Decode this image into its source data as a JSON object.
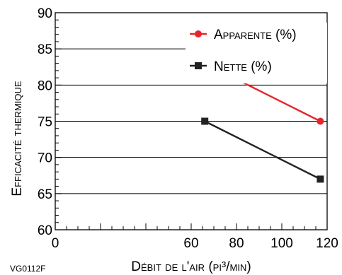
{
  "figure_code": "VG0112F",
  "chart_data": {
    "type": "line",
    "xlabel": "Débit de l'air (pi³/min)",
    "ylabel": "Efficacité thermique",
    "xlim": [
      0,
      120
    ],
    "ylim": [
      60,
      90
    ],
    "x_ticks": [
      0,
      20,
      40,
      60,
      80,
      100,
      120
    ],
    "x_tick_labels": [
      "0",
      "",
      "",
      "60",
      "80",
      "100",
      "120"
    ],
    "y_ticks": [
      60,
      65,
      70,
      75,
      80,
      85,
      90
    ],
    "y_minor_step": 1,
    "x_minor_step": 5,
    "grid": "horizontal",
    "legend_position": "top-right",
    "series": [
      {
        "name": "Apparente (%)",
        "color": "#e8242a",
        "marker": "circle",
        "points": [
          [
            66,
            83
          ],
          [
            117,
            75
          ]
        ]
      },
      {
        "name": "Nette (%)",
        "color": "#222222",
        "marker": "square",
        "points": [
          [
            66,
            75
          ],
          [
            117,
            67
          ]
        ]
      }
    ]
  }
}
